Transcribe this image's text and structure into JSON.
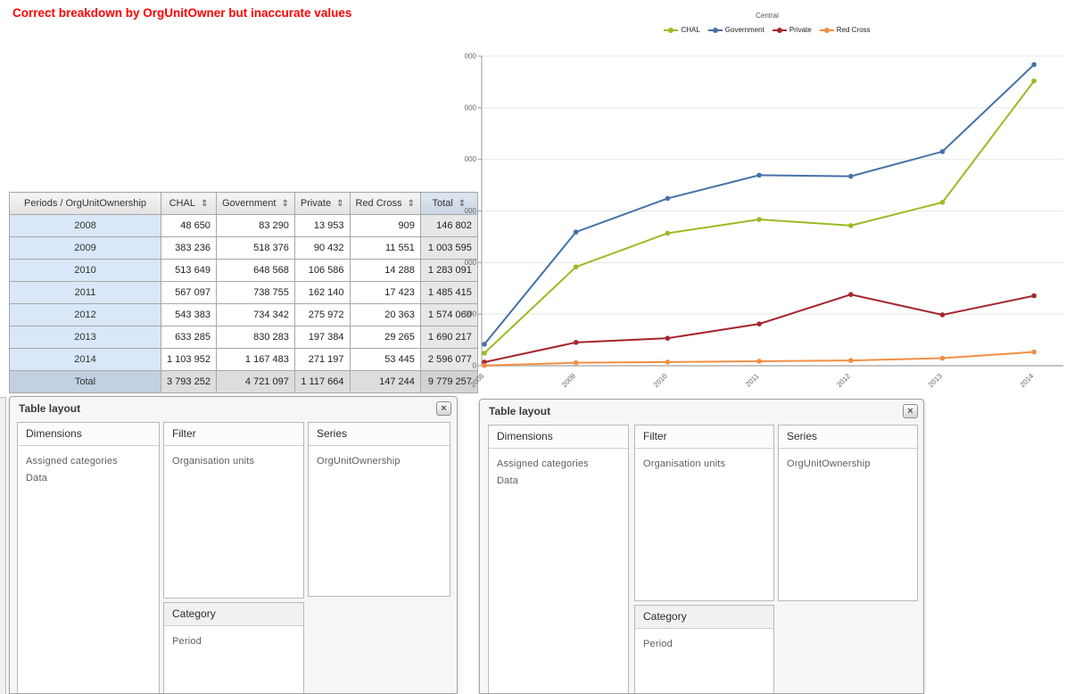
{
  "annotation": {
    "title": "Correct breakdown by OrgUnitOwner but inaccurate values",
    "color": "#fe0000"
  },
  "pivot_table": {
    "corner_header": "Periods / OrgUnitOwnership",
    "sort_icon": "⇕",
    "columns": [
      "CHAL",
      "Government",
      "Private",
      "Red Cross",
      "Total"
    ],
    "rows": [
      {
        "label": "2008",
        "values": [
          "48 650",
          "83 290",
          "13 953",
          "909",
          "146 802"
        ]
      },
      {
        "label": "2009",
        "values": [
          "383 236",
          "518 376",
          "90 432",
          "11 551",
          "1 003 595"
        ]
      },
      {
        "label": "2010",
        "values": [
          "513 649",
          "648 568",
          "106 586",
          "14 288",
          "1 283 091"
        ]
      },
      {
        "label": "2011",
        "values": [
          "567 097",
          "738 755",
          "162 140",
          "17 423",
          "1 485 415"
        ]
      },
      {
        "label": "2012",
        "values": [
          "543 383",
          "734 342",
          "275 972",
          "20 363",
          "1 574 060"
        ]
      },
      {
        "label": "2013",
        "values": [
          "633 285",
          "830 283",
          "197 384",
          "29 265",
          "1 690 217"
        ]
      },
      {
        "label": "2014",
        "values": [
          "1 103 952",
          "1 167 483",
          "271 197",
          "53 445",
          "2 596 077"
        ]
      },
      {
        "label": "Total",
        "values": [
          "3 793 252",
          "4 721 097",
          "1 117 664",
          "147 244",
          "9 779 257"
        ],
        "is_total": true
      }
    ]
  },
  "chart_data": {
    "type": "line",
    "title": "Central",
    "categories": [
      "2008",
      "2009",
      "2010",
      "2011",
      "2012",
      "2013",
      "2014"
    ],
    "series": [
      {
        "name": "CHAL",
        "color": "#9aba23",
        "values": [
          48650,
          383236,
          513649,
          567097,
          543383,
          633285,
          1103952
        ]
      },
      {
        "name": "Government",
        "color": "#4572a7",
        "values": [
          83290,
          518376,
          648568,
          738755,
          734342,
          830283,
          1167483
        ]
      },
      {
        "name": "Private",
        "color": "#a5262d",
        "values": [
          13953,
          90432,
          106586,
          162140,
          275972,
          197384,
          271197
        ]
      },
      {
        "name": "Red Cross",
        "color": "#f28f43",
        "values": [
          909,
          11551,
          14288,
          17423,
          20363,
          29265,
          53445
        ]
      }
    ],
    "xlabel": "",
    "ylabel": "",
    "ylim": [
      0,
      1200000
    ],
    "ytick_step": 200000,
    "grid": true,
    "legend_position": "top"
  },
  "panels": [
    {
      "title": "Table layout",
      "close_icon": "×",
      "dimensions_header": "Dimensions",
      "dimensions_items": [
        "Assigned categories",
        "Data"
      ],
      "filter_header": "Filter",
      "filter_items": [
        "Organisation units"
      ],
      "series_header": "Series",
      "series_items": [
        "OrgUnitOwnership"
      ],
      "category_header": "Category",
      "category_items": [
        "Period"
      ]
    },
    {
      "title": "Table layout",
      "close_icon": "×",
      "dimensions_header": "Dimensions",
      "dimensions_items": [
        "Assigned categories",
        "Data"
      ],
      "filter_header": "Filter",
      "filter_items": [
        "Organisation units"
      ],
      "series_header": "Series",
      "series_items": [
        "OrgUnitOwnership"
      ],
      "category_header": "Category",
      "category_items": [
        "Period"
      ]
    }
  ]
}
